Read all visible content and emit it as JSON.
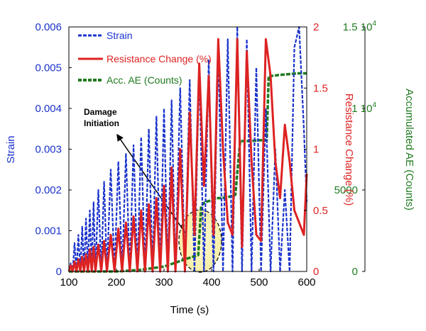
{
  "chart_data": {
    "type": "line",
    "xlabel": "Time (s)",
    "xlim": [
      100,
      600
    ],
    "xticks": [
      "100",
      "200",
      "300",
      "400",
      "500",
      "600"
    ],
    "axes": {
      "strain": {
        "label": "Strain",
        "color": "#1a33cc",
        "ylim": [
          0,
          0.006
        ],
        "ticks": [
          "0",
          "0.001",
          "0.002",
          "0.003",
          "0.004",
          "0.005",
          "0.006"
        ]
      },
      "resistance": {
        "label": "Resistance Change (%)",
        "color": "#dd2222",
        "ylim": [
          0,
          2
        ],
        "ticks": [
          "0",
          "0.5",
          "1",
          "1.5",
          "2"
        ]
      },
      "ae": {
        "label": "Accumulated AE (Counts)",
        "color": "#1f7a1f",
        "ylim": [
          0,
          15000
        ],
        "ticks": [
          "0",
          "5000",
          "1 10",
          "1.5 10"
        ],
        "tick_exponent": "4"
      }
    },
    "legend": {
      "placement": "top-left",
      "entries": [
        "Strain",
        "Resistance Change (%)",
        "Acc. AE (Counts)"
      ]
    },
    "annotation": {
      "text_line1": "Damage",
      "text_line2": "Initiation"
    },
    "series": [
      {
        "name": "Strain",
        "axis": "strain",
        "style": "dashed",
        "x": [
          100,
          104,
          108,
          112,
          116,
          120,
          124,
          128,
          132,
          136,
          140,
          144,
          148,
          152,
          156,
          162,
          168,
          174,
          180,
          188,
          196,
          204,
          212,
          220,
          228,
          236,
          244,
          252,
          260,
          268,
          276,
          284,
          292,
          300,
          308,
          316,
          324,
          334,
          344,
          354,
          364,
          374,
          384,
          394,
          404,
          414,
          424,
          434,
          444,
          454,
          464,
          474,
          484,
          494,
          504,
          514,
          524,
          534,
          544,
          554,
          564,
          574,
          584,
          594,
          600
        ],
        "y": [
          0,
          0.0002,
          0,
          0.0007,
          0,
          0.0009,
          0,
          0.0011,
          0,
          0.0013,
          0,
          0.0015,
          0,
          0.0017,
          0,
          0.002,
          0,
          0.0022,
          0,
          0.0025,
          0,
          0.0027,
          0,
          0.0029,
          0,
          0.0031,
          0,
          0.0033,
          0,
          0.0035,
          0,
          0.0038,
          0,
          0.004,
          0,
          0.0042,
          0,
          0.0045,
          0,
          0.0047,
          0,
          0.005,
          0,
          0.0052,
          0,
          0.0055,
          0,
          0.0057,
          0,
          0.006,
          0,
          0.0057,
          0,
          0.005,
          0,
          0.004,
          0,
          0.003,
          0,
          0.002,
          0,
          0.0055,
          0.006,
          0.0035,
          0.0017
        ]
      },
      {
        "name": "Resistance Change (%)",
        "axis": "resistance",
        "style": "solid",
        "x": [
          100,
          104,
          108,
          112,
          116,
          120,
          124,
          128,
          132,
          136,
          140,
          144,
          148,
          152,
          156,
          162,
          168,
          174,
          180,
          188,
          196,
          204,
          212,
          220,
          228,
          236,
          244,
          252,
          260,
          268,
          276,
          284,
          292,
          300,
          308,
          316,
          324,
          334,
          344,
          354,
          364,
          374,
          384,
          394,
          404,
          414,
          424,
          434,
          444,
          454,
          464,
          474,
          484,
          494,
          504,
          514,
          524,
          534,
          544,
          554,
          564,
          574,
          584,
          594,
          600
        ],
        "y": [
          0,
          0.05,
          0,
          0.08,
          0,
          0.1,
          0,
          0.12,
          0,
          0.14,
          0,
          0.18,
          0,
          0.2,
          0,
          0.22,
          0,
          0.25,
          0,
          0.3,
          0,
          0.35,
          0,
          0.4,
          0,
          0.45,
          0,
          0.5,
          0,
          0.55,
          0,
          0.6,
          0,
          0.7,
          0,
          0.85,
          0,
          1.0,
          0,
          1.3,
          0.3,
          1.7,
          0.7,
          1.6,
          0.3,
          1.9,
          1.0,
          0.4,
          0.3,
          1.9,
          0.2,
          1.8,
          0.9,
          0.3,
          0.25,
          1.9,
          1.6,
          0.9,
          0.6,
          1.2,
          0.9,
          0.5,
          0.4,
          0.3,
          0.8
        ]
      },
      {
        "name": "Acc. AE (Counts)",
        "axis": "ae",
        "style": "dashed",
        "x": [
          100,
          150,
          200,
          250,
          300,
          320,
          340,
          360,
          372,
          378,
          384,
          392,
          404,
          410,
          420,
          430,
          440,
          445,
          450,
          460,
          470,
          480,
          500,
          510,
          516,
          520,
          526,
          530,
          540,
          560,
          580,
          600
        ],
        "y": [
          0,
          0,
          0,
          100,
          300,
          500,
          700,
          900,
          1000,
          4000,
          4200,
          4300,
          4400,
          4500,
          4500,
          4550,
          4600,
          4650,
          4700,
          8000,
          8000,
          8000,
          8050,
          8050,
          8050,
          12000,
          12000,
          12000,
          12050,
          12100,
          12150,
          12150
        ]
      }
    ]
  }
}
